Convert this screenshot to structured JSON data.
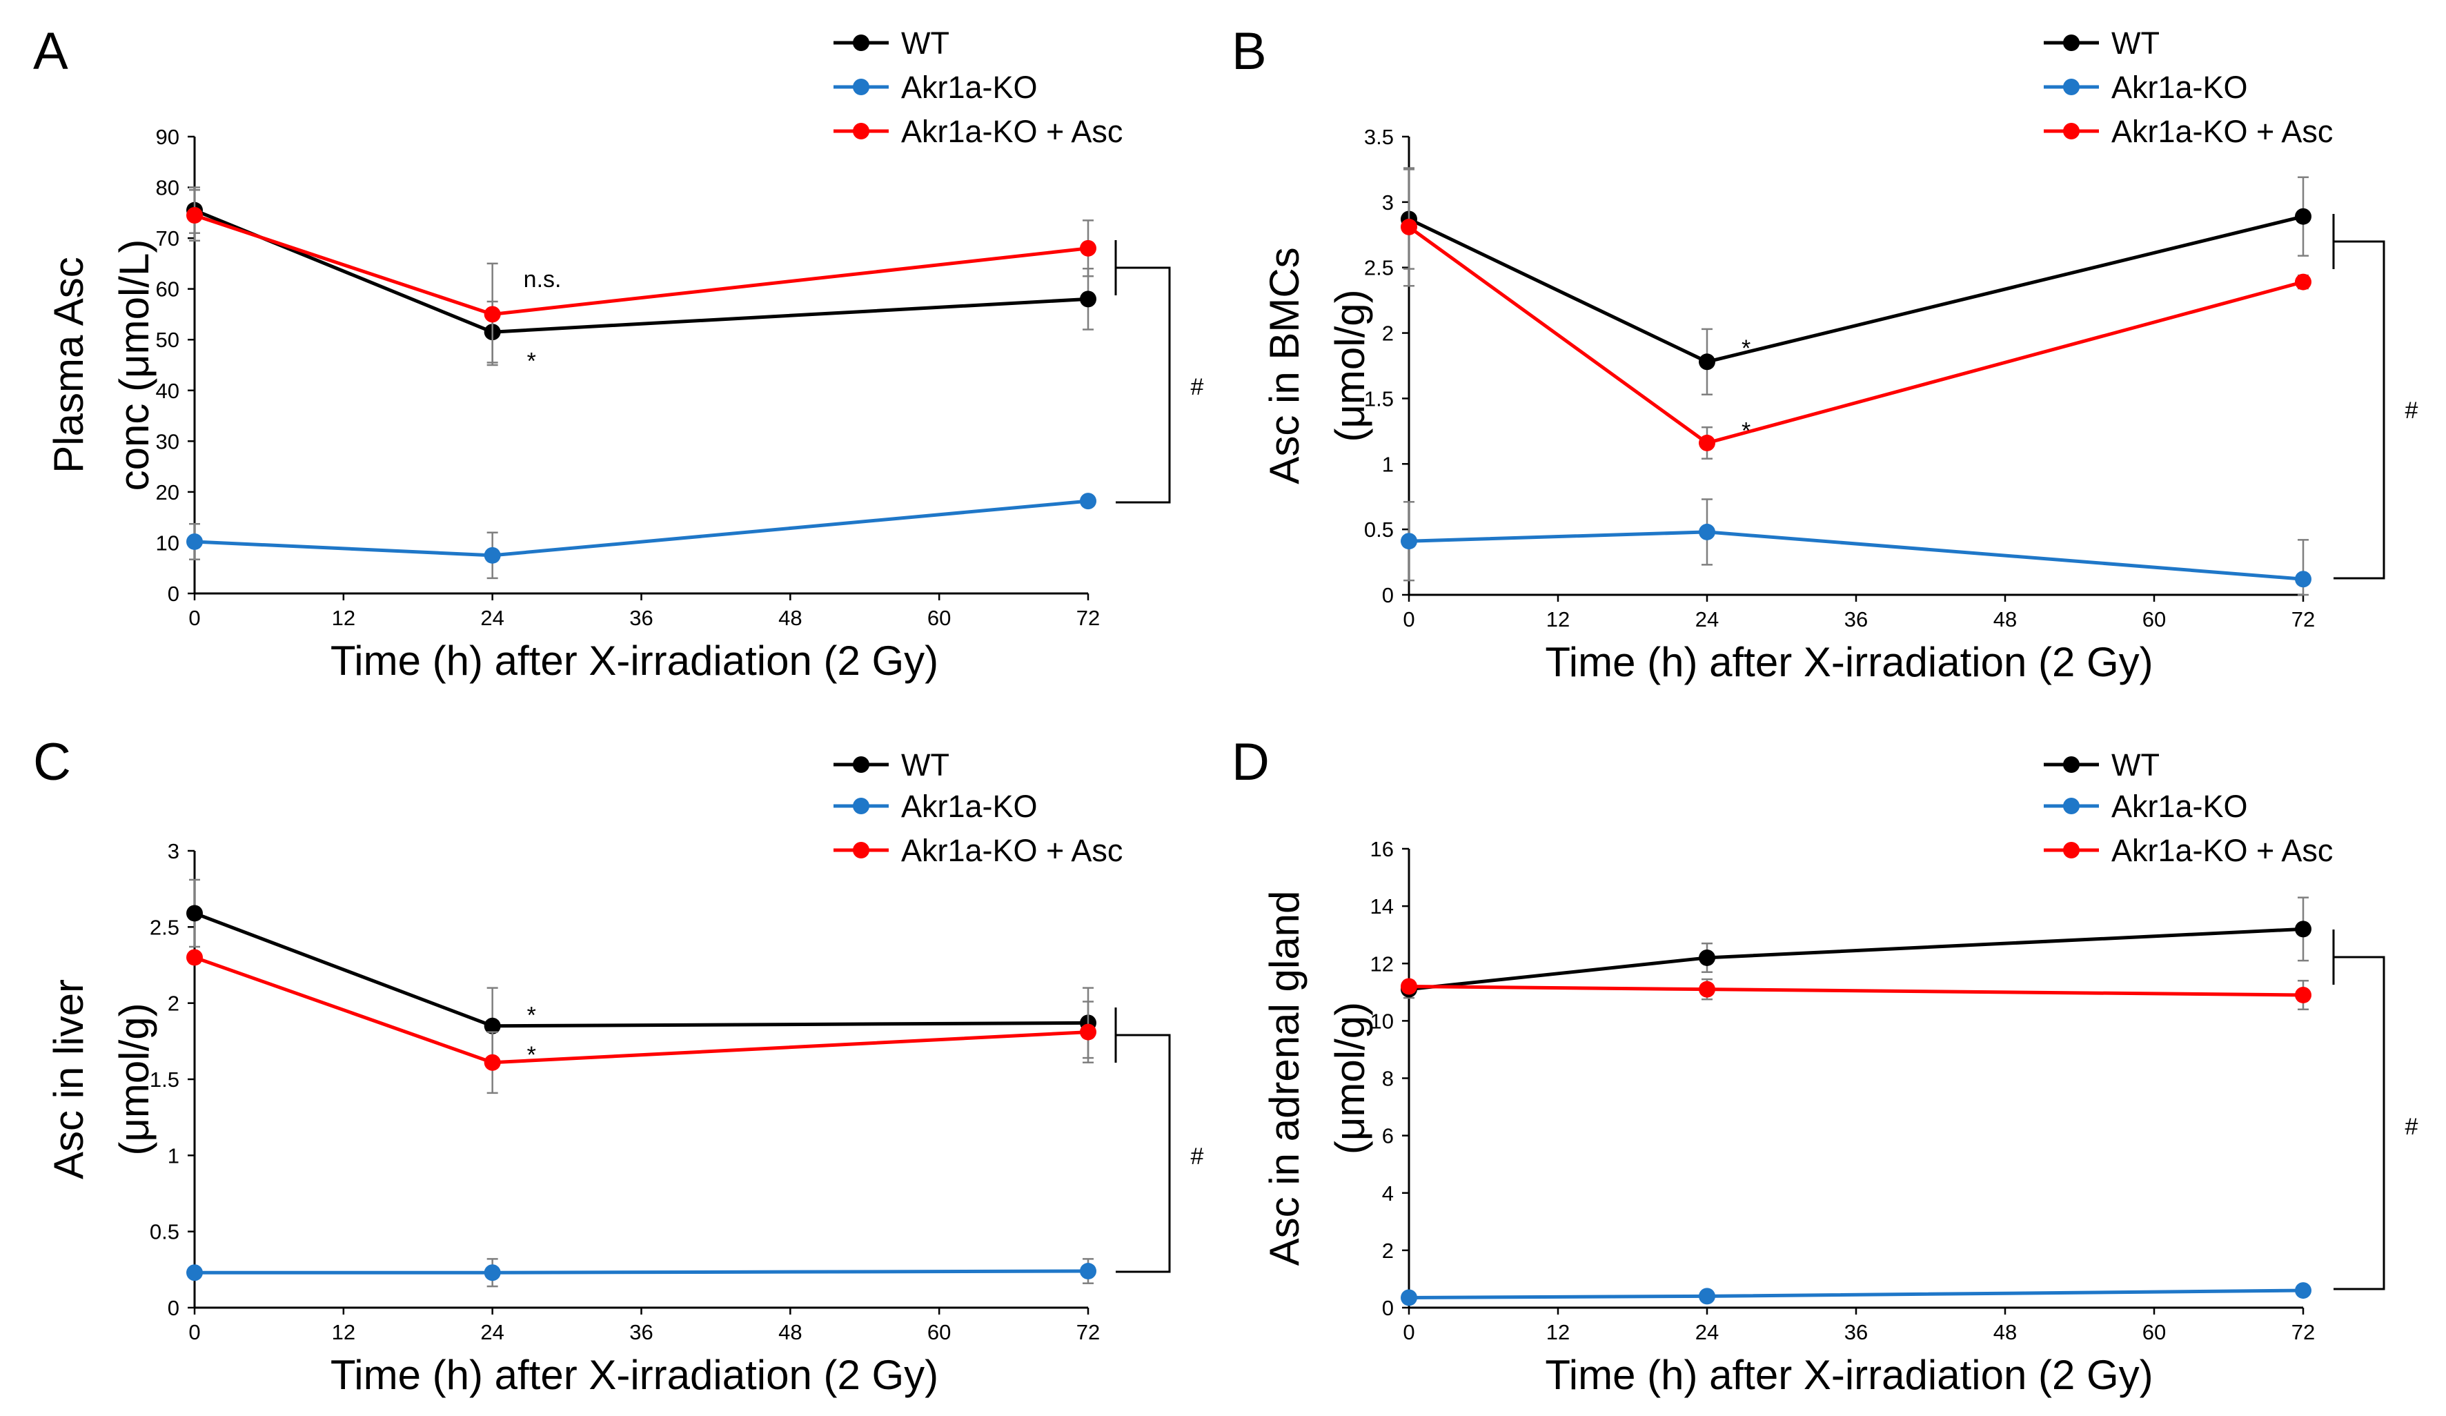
{
  "figure": {
    "x_axis_label": "Time (h) after X-irradiation (2 Gy)",
    "x_ticks": [
      0,
      12,
      24,
      36,
      48,
      60,
      72
    ],
    "legend": [
      "WT",
      "Akr1a-KO",
      "Akr1a-KO + Asc"
    ]
  },
  "chart_data": [
    {
      "type": "line",
      "panel": "A",
      "title": "",
      "xlabel": "Time (h) after X-irradiation (2 Gy)",
      "ylabel_lines": [
        "Plasma Asc",
        "conc (μmol/L)"
      ],
      "xlim": [
        0,
        72
      ],
      "ylim": [
        0,
        90
      ],
      "yticks": [
        0,
        10,
        20,
        30,
        40,
        50,
        60,
        70,
        80,
        90
      ],
      "ytick_labels": [
        "0",
        "10",
        "20",
        "30",
        "40",
        "50",
        "60",
        "70",
        "80",
        "90"
      ],
      "x": [
        0,
        24,
        72
      ],
      "series": [
        {
          "name": "WT",
          "color": "#000000",
          "values": [
            75.5,
            51.5,
            58
          ],
          "errors": [
            4.5,
            6,
            6
          ]
        },
        {
          "name": "Akr1a-KO",
          "color": "#1f77c8",
          "values": [
            10.2,
            7.5,
            18.2
          ],
          "errors": [
            3.5,
            4.5,
            1
          ]
        },
        {
          "name": "Akr1a-KO + Asc",
          "color": "#ff0000",
          "values": [
            74.5,
            55,
            68
          ],
          "errors": [
            5,
            10,
            5.5
          ]
        }
      ],
      "annotations": [
        {
          "text": "n.s.",
          "x": 24,
          "y": 62
        },
        {
          "text": "*",
          "x": 24,
          "y": 47
        }
      ],
      "bracket_label": "#"
    },
    {
      "type": "line",
      "panel": "B",
      "title": "",
      "xlabel": "Time (h) after X-irradiation (2 Gy)",
      "ylabel_lines": [
        "Asc in BMCs",
        "(μmol/g)"
      ],
      "xlim": [
        0,
        72
      ],
      "ylim": [
        0,
        3.5
      ],
      "yticks": [
        0,
        0.5,
        1,
        1.5,
        2,
        2.5,
        3,
        3.5
      ],
      "ytick_labels": [
        "0",
        "0.5",
        "1",
        "1.5",
        "2",
        "2.5",
        "3",
        "3.5"
      ],
      "x": [
        0,
        24,
        72
      ],
      "series": [
        {
          "name": "WT",
          "color": "#000000",
          "values": [
            2.87,
            1.78,
            2.89
          ],
          "errors": [
            0.38,
            0.25,
            0.3
          ]
        },
        {
          "name": "Akr1a-KO",
          "color": "#1f77c8",
          "values": [
            0.41,
            0.48,
            0.12
          ],
          "errors": [
            0.3,
            0.25,
            0.3
          ]
        },
        {
          "name": "Akr1a-KO + Asc",
          "color": "#ff0000",
          "values": [
            2.81,
            1.16,
            2.39
          ],
          "errors": [
            0.45,
            0.12,
            0.05
          ]
        }
      ],
      "annotations": [
        {
          "text": "*",
          "x": 24,
          "y": 1.93
        },
        {
          "text": "*",
          "x": 24,
          "y": 1.3
        }
      ],
      "bracket_label": "#"
    },
    {
      "type": "line",
      "panel": "C",
      "title": "",
      "xlabel": "Time (h) after X-irradiation (2 Gy)",
      "ylabel_lines": [
        "Asc  in liver",
        "(μmol/g)"
      ],
      "xlim": [
        0,
        72
      ],
      "ylim": [
        0,
        3
      ],
      "yticks": [
        0,
        0.5,
        1,
        1.5,
        2,
        2.5,
        3
      ],
      "ytick_labels": [
        "0",
        "0.5",
        "1",
        "1.5",
        "2",
        "2.5",
        "3"
      ],
      "x": [
        0,
        24,
        72
      ],
      "series": [
        {
          "name": "WT",
          "color": "#000000",
          "values": [
            2.59,
            1.85,
            1.87
          ],
          "errors": [
            0.22,
            0.25,
            0.23
          ]
        },
        {
          "name": "Akr1a-KO",
          "color": "#1f77c8",
          "values": [
            0.23,
            0.23,
            0.24
          ],
          "errors": [
            0.03,
            0.09,
            0.08
          ]
        },
        {
          "name": "Akr1a-KO + Asc",
          "color": "#ff0000",
          "values": [
            2.3,
            1.61,
            1.81
          ],
          "errors": [
            0.02,
            0.2,
            0.2
          ]
        }
      ],
      "annotations": [
        {
          "text": "*",
          "x": 24,
          "y": 1.96
        },
        {
          "text": "*",
          "x": 24,
          "y": 1.7
        }
      ],
      "bracket_label": "#"
    },
    {
      "type": "line",
      "panel": "D",
      "title": "",
      "xlabel": "Time (h) after X-irradiation (2 Gy)",
      "ylabel_lines": [
        "Asc in adrenal gland",
        "(μmol/g)"
      ],
      "xlim": [
        0,
        72
      ],
      "ylim": [
        0,
        16
      ],
      "yticks": [
        0,
        2,
        4,
        6,
        8,
        10,
        12,
        14,
        16
      ],
      "ytick_labels": [
        "0",
        "2",
        "4",
        "6",
        "8",
        "10",
        "12",
        "14",
        "16"
      ],
      "x": [
        0,
        24,
        72
      ],
      "series": [
        {
          "name": "WT",
          "color": "#000000",
          "values": [
            11.1,
            12.2,
            13.2
          ],
          "errors": [
            0.3,
            0.5,
            1.1
          ]
        },
        {
          "name": "Akr1a-KO",
          "color": "#1f77c8",
          "values": [
            0.35,
            0.4,
            0.6
          ],
          "errors": [
            0.1,
            0.1,
            0.1
          ]
        },
        {
          "name": "Akr1a-KO + Asc",
          "color": "#ff0000",
          "values": [
            11.2,
            11.1,
            10.9
          ],
          "errors": [
            0.2,
            0.35,
            0.5
          ]
        }
      ],
      "annotations": [],
      "bracket_label": "#"
    }
  ]
}
